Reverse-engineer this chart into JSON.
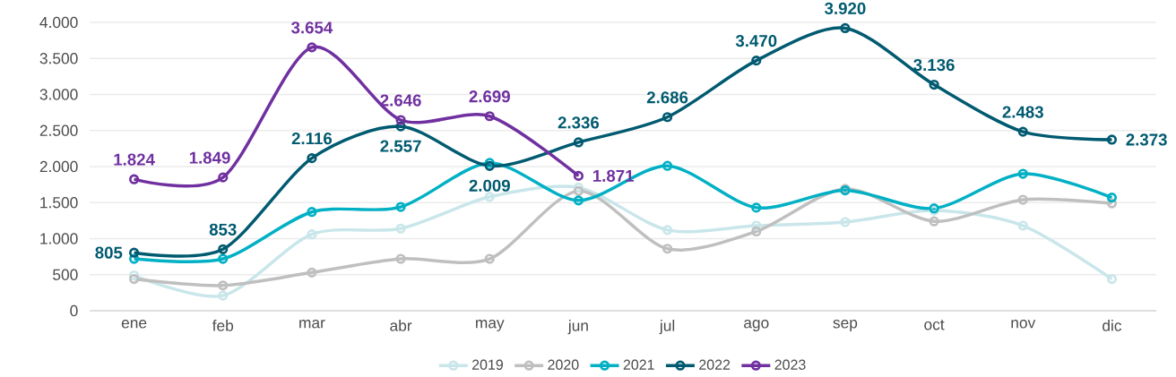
{
  "chart_data": {
    "type": "line",
    "categories": [
      "ene",
      "feb",
      "mar",
      "abr",
      "may",
      "jun",
      "jul",
      "ago",
      "sep",
      "oct",
      "nov",
      "dic"
    ],
    "ylim": [
      0,
      4000
    ],
    "yticks": [
      {
        "value": 0,
        "label": "0"
      },
      {
        "value": 500,
        "label": "500"
      },
      {
        "value": 1000,
        "label": "1.000"
      },
      {
        "value": 1500,
        "label": "1.500"
      },
      {
        "value": 2000,
        "label": "2.000"
      },
      {
        "value": 2500,
        "label": "2.500"
      },
      {
        "value": 3000,
        "label": "3.000"
      },
      {
        "value": 3500,
        "label": "3.500"
      },
      {
        "value": 4000,
        "label": "4.000"
      }
    ],
    "grid": "y",
    "legend": "bottom",
    "marker": "circle",
    "line_style": "solid",
    "series": [
      {
        "name": "2019",
        "color": "#c9e6ea",
        "values": [
          490,
          210,
          1060,
          1140,
          1580,
          1710,
          1120,
          1180,
          1230,
          1390,
          1180,
          440
        ]
      },
      {
        "name": "2020",
        "color": "#bfbfbf",
        "values": [
          440,
          350,
          530,
          720,
          720,
          1660,
          860,
          1100,
          1690,
          1240,
          1540,
          1490
        ]
      },
      {
        "name": "2021",
        "color": "#00b0c4",
        "values": [
          720,
          720,
          1370,
          1440,
          2050,
          1530,
          2010,
          1430,
          1670,
          1420,
          1900,
          1570
        ]
      },
      {
        "name": "2022",
        "color": "#005a70",
        "values": [
          805,
          853,
          2116,
          2557,
          2009,
          2336,
          2686,
          3470,
          3920,
          3136,
          2483,
          2373
        ],
        "value_labels": [
          "805",
          "853",
          "2.116",
          "2.557",
          "2.009",
          "2.336",
          "2.686",
          "3.470",
          "3.920",
          "3.136",
          "2.483",
          "2.373"
        ]
      },
      {
        "name": "2023",
        "color": "#7030a0",
        "values": [
          1824,
          1849,
          3654,
          2646,
          2699,
          1871,
          null,
          null,
          null,
          null,
          null,
          null
        ],
        "value_labels": [
          "1.824",
          "1.849",
          "3.654",
          "2.646",
          "2.699",
          "1.871",
          null,
          null,
          null,
          null,
          null,
          null
        ]
      }
    ]
  }
}
